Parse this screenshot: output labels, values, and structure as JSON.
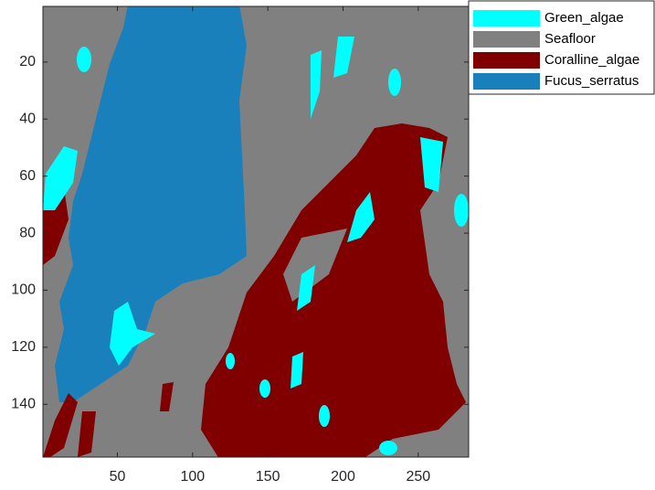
{
  "chart_data": {
    "type": "image",
    "series": [
      {
        "name": "Green_algae",
        "color": "#00ffff"
      },
      {
        "name": "Seafloor",
        "color": "#808080"
      },
      {
        "name": "Coralline_algae",
        "color": "#800000"
      },
      {
        "name": "Fucus_serratus",
        "color": "#1a80bb"
      }
    ],
    "xlim": [
      0.5,
      283.5
    ],
    "ylim": [
      0.5,
      158.5
    ],
    "y_reversed": true,
    "xticks": [
      50,
      100,
      150,
      200,
      250
    ],
    "yticks": [
      20,
      40,
      60,
      80,
      100,
      120,
      140
    ]
  }
}
